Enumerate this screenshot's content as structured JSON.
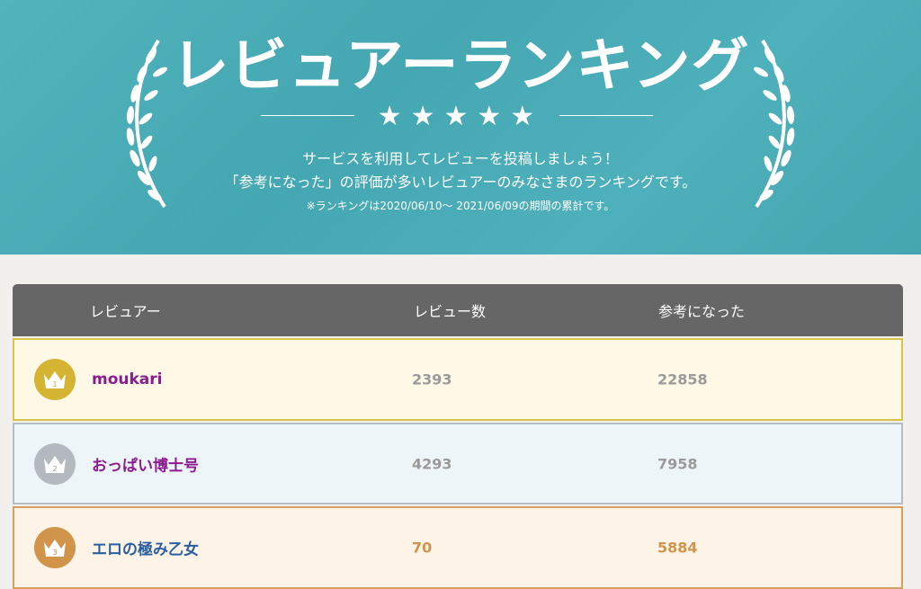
{
  "banner": {
    "title": "レビュアーランキング",
    "stars": "★★★★★",
    "line1": "サービスを利用してレビューを投稿しましょう！",
    "line2": "「参考になった」の評価が多いレビュアーのみなさまのランキングです。",
    "note": "※ランキングは2020/06/10～ 2021/06/09の期間の累計です。"
  },
  "table": {
    "headers": [
      "レビュアー",
      "レビュー数",
      "参考になった"
    ],
    "rows": [
      {
        "rank": "1",
        "name": "moukari",
        "reviews": "2393",
        "helpful": "22858"
      },
      {
        "rank": "2",
        "name": "おっぱい博士号",
        "reviews": "4293",
        "helpful": "7958"
      },
      {
        "rank": "3",
        "name": "エロの極み乙女",
        "reviews": "70",
        "helpful": "5884"
      }
    ]
  },
  "colors": {
    "banner": "#4aabb5",
    "gold": "#d4b432",
    "silver": "#b3b9be",
    "bronze": "#d0944a"
  }
}
